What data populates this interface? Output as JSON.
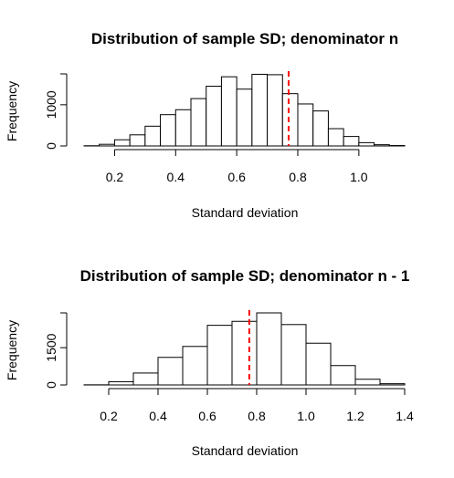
{
  "chart_data": [
    {
      "type": "bar",
      "title": "Distribution of sample SD; denominator n",
      "xlabel": "Standard deviation",
      "ylabel": "Frequency",
      "bin_width": 0.05,
      "bin_starts": [
        0.1,
        0.15,
        0.2,
        0.25,
        0.3,
        0.35,
        0.4,
        0.45,
        0.5,
        0.55,
        0.6,
        0.65,
        0.7,
        0.75,
        0.8,
        0.85,
        0.9,
        0.95,
        1.0,
        1.05,
        1.1
      ],
      "values": [
        5,
        40,
        150,
        270,
        480,
        760,
        880,
        1150,
        1450,
        1680,
        1380,
        1740,
        1730,
        1270,
        1020,
        850,
        420,
        230,
        80,
        30,
        10
      ],
      "xlim": [
        0.1,
        1.15
      ],
      "ylim": [
        0,
        1750
      ],
      "x_ticks": [
        0.2,
        0.4,
        0.6,
        0.8,
        1.0
      ],
      "x_tick_labels": [
        "0.2",
        "0.4",
        "0.6",
        "0.8",
        "1.0"
      ],
      "y_ticks": [
        0,
        1000
      ],
      "y_tick_labels": [
        "0",
        "1000"
      ],
      "reference_line": 0.77,
      "reference_color": "#ff0000",
      "grid": false
    },
    {
      "type": "bar",
      "title": "Distribution of sample SD; denominator n - 1",
      "xlabel": "Standard deviation",
      "ylabel": "Frequency",
      "bin_width": 0.1,
      "bin_starts": [
        0.1,
        0.2,
        0.3,
        0.4,
        0.5,
        0.6,
        0.7,
        0.8,
        0.9,
        1.0,
        1.1,
        1.2,
        1.3
      ],
      "values": [
        5,
        130,
        480,
        1110,
        1550,
        2400,
        2560,
        2900,
        2430,
        1680,
        780,
        230,
        50
      ],
      "xlim": [
        0.1,
        1.4
      ],
      "ylim": [
        0,
        2900
      ],
      "x_ticks": [
        0.2,
        0.4,
        0.6,
        0.8,
        1.0,
        1.2,
        1.4
      ],
      "x_tick_labels": [
        "0.2",
        "0.4",
        "0.6",
        "0.8",
        "1.0",
        "1.2",
        "1.4"
      ],
      "y_ticks": [
        0,
        1500
      ],
      "y_tick_labels": [
        "0",
        "1500"
      ],
      "reference_line": 0.77,
      "reference_color": "#ff0000",
      "grid": false
    }
  ]
}
